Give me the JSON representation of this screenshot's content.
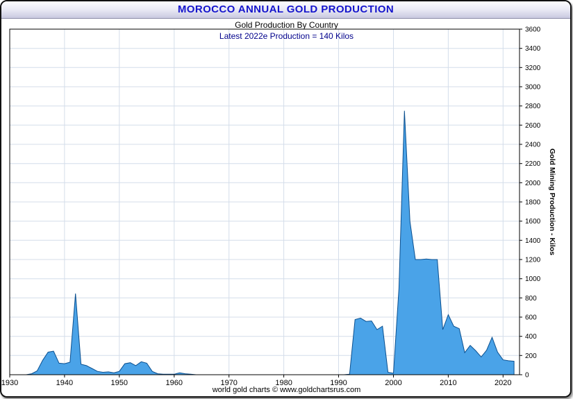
{
  "chart_data": {
    "type": "area",
    "title": "MOROCCO ANNUAL GOLD PRODUCTION",
    "subtitle": "Gold Production By Country",
    "annotation": "Latest 2022e Production = 140 Kilos",
    "latest_year": "2022e",
    "latest_value_kilos": 140,
    "ylabel_right": "Gold Mining Production - Kilos",
    "footer": "world gold charts © www.goldchartsrus.com",
    "xlim": [
      1930,
      2023
    ],
    "ylim": [
      0,
      3600
    ],
    "x_ticks": [
      1930,
      1940,
      1950,
      1960,
      1970,
      1980,
      1990,
      2000,
      2010,
      2020
    ],
    "y_ticks": [
      0,
      200,
      400,
      600,
      800,
      1000,
      1200,
      1400,
      1600,
      1800,
      2000,
      2200,
      2400,
      2600,
      2800,
      3000,
      3200,
      3400,
      3600
    ],
    "x": [
      1930,
      1931,
      1932,
      1933,
      1934,
      1935,
      1936,
      1937,
      1938,
      1939,
      1940,
      1941,
      1942,
      1943,
      1944,
      1945,
      1946,
      1947,
      1948,
      1949,
      1950,
      1951,
      1952,
      1953,
      1954,
      1955,
      1956,
      1957,
      1958,
      1959,
      1960,
      1961,
      1962,
      1963,
      1964,
      1965,
      1966,
      1967,
      1968,
      1969,
      1970,
      1971,
      1972,
      1973,
      1974,
      1975,
      1976,
      1977,
      1978,
      1979,
      1980,
      1981,
      1982,
      1983,
      1984,
      1985,
      1986,
      1987,
      1988,
      1989,
      1990,
      1991,
      1992,
      1993,
      1994,
      1995,
      1996,
      1997,
      1998,
      1999,
      2000,
      2001,
      2002,
      2003,
      2004,
      2005,
      2006,
      2007,
      2008,
      2009,
      2010,
      2011,
      2012,
      2013,
      2014,
      2015,
      2016,
      2017,
      2018,
      2019,
      2020,
      2021,
      2022
    ],
    "values": [
      0,
      0,
      0,
      0,
      10,
      40,
      150,
      235,
      245,
      120,
      115,
      130,
      845,
      110,
      95,
      65,
      35,
      25,
      30,
      20,
      35,
      115,
      125,
      95,
      135,
      120,
      35,
      10,
      5,
      5,
      5,
      20,
      10,
      5,
      0,
      0,
      0,
      0,
      0,
      0,
      0,
      0,
      0,
      0,
      0,
      0,
      0,
      0,
      0,
      0,
      0,
      0,
      0,
      0,
      0,
      0,
      0,
      0,
      0,
      0,
      0,
      0,
      5,
      575,
      590,
      555,
      560,
      470,
      505,
      25,
      15,
      900,
      2750,
      1600,
      1200,
      1200,
      1205,
      1200,
      1200,
      470,
      625,
      505,
      480,
      230,
      305,
      250,
      185,
      255,
      390,
      235,
      155,
      145,
      140
    ],
    "grid": true,
    "legend": "none",
    "colors": {
      "fill": "#4AA3E8",
      "stroke": "#0A4F8F",
      "grid": "#D4DDEA",
      "plot_border": "#000000",
      "title_text": "#1414CC",
      "annotation_text": "#00008B"
    }
  }
}
